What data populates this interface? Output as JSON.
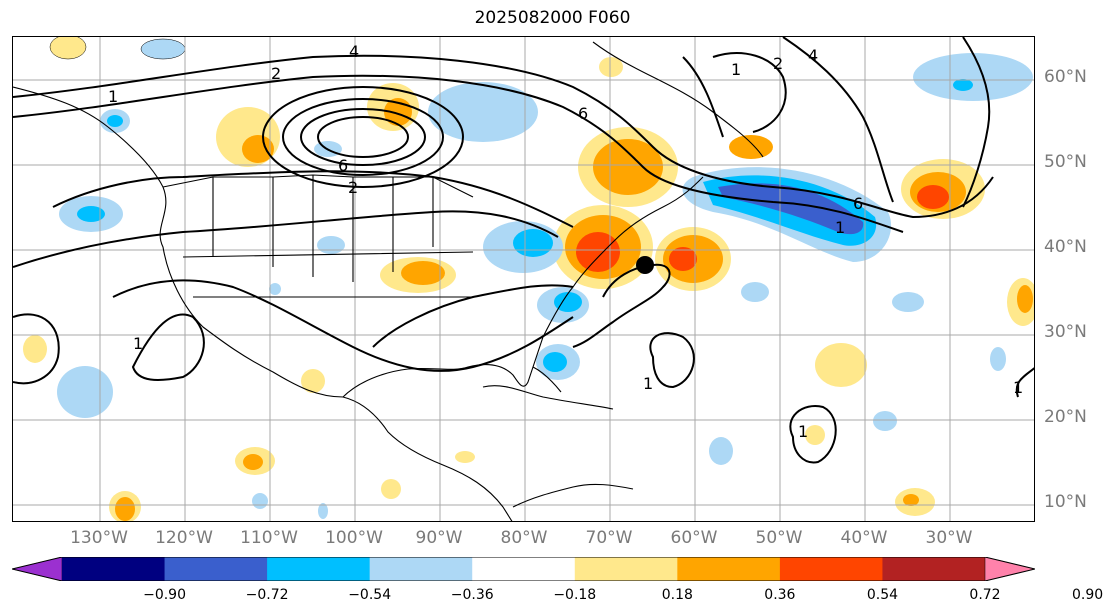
{
  "title": "2025082000 F060",
  "lat_labels": [
    "60°N",
    "50°N",
    "40°N",
    "30°N",
    "20°N",
    "10°N"
  ],
  "lon_labels": [
    "130°W",
    "120°W",
    "110°W",
    "100°W",
    "90°W",
    "80°W",
    "70°W",
    "60°W",
    "50°W",
    "40°W",
    "30°W"
  ],
  "colorbar": {
    "ticks": [
      "−0.90",
      "−0.72",
      "−0.54",
      "−0.36",
      "−0.18",
      "0.18",
      "0.36",
      "0.54",
      "0.72",
      "0.90"
    ],
    "colors": [
      "#9b30d0",
      "#000080",
      "#3a5fcd",
      "#00bfff",
      "#add8f5",
      "#ffffff",
      "#ffe88c",
      "#ffa500",
      "#ff4500",
      "#b22222",
      "#ff82ab"
    ]
  },
  "contour_labels": [
    "1",
    "2",
    "4",
    "6",
    "2",
    "6",
    "1",
    "2",
    "4",
    "1",
    "6",
    "1",
    "1",
    "1",
    "1"
  ],
  "colors": {
    "gridline": "#a8a8a8",
    "label_gray": "#7a7a7a",
    "coast": "#000000"
  }
}
